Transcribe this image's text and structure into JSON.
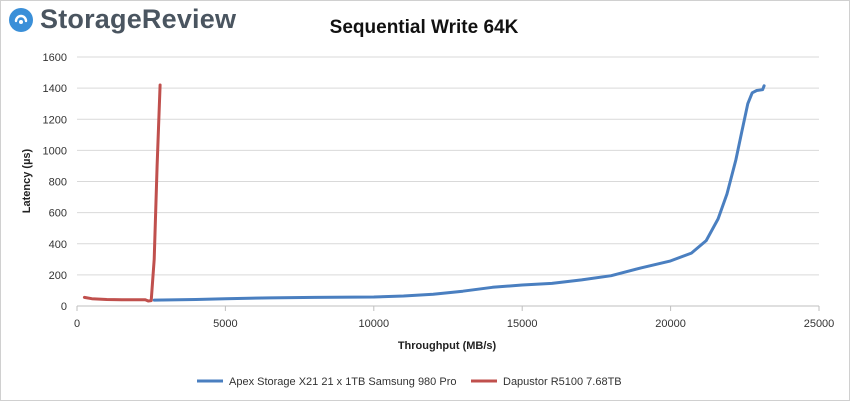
{
  "brand": {
    "name": "StorageReview",
    "accent": "#3a8fd8"
  },
  "chart_data": {
    "type": "line",
    "title": "Sequential Write 64K",
    "xlabel": "Throughput (MB/s)",
    "ylabel": "Latency (µs)",
    "xlim": [
      0,
      25000
    ],
    "ylim": [
      0,
      1600
    ],
    "xticks": [
      0,
      5000,
      10000,
      15000,
      20000,
      25000
    ],
    "yticks": [
      0,
      200,
      400,
      600,
      800,
      1000,
      1200,
      1400,
      1600
    ],
    "grid": {
      "horizontal": true,
      "vertical": false
    },
    "legend": "bottom",
    "series": [
      {
        "name": "Apex Storage X21 21 x 1TB Samsung 980 Pro",
        "color": "#4a7fc0",
        "points": [
          [
            2600,
            38
          ],
          [
            4000,
            42
          ],
          [
            5000,
            47
          ],
          [
            6500,
            52
          ],
          [
            8000,
            55
          ],
          [
            10000,
            58
          ],
          [
            11000,
            64
          ],
          [
            12000,
            75
          ],
          [
            13000,
            95
          ],
          [
            14000,
            120
          ],
          [
            15000,
            135
          ],
          [
            16000,
            145
          ],
          [
            17000,
            168
          ],
          [
            18000,
            195
          ],
          [
            19000,
            245
          ],
          [
            20000,
            290
          ],
          [
            20700,
            340
          ],
          [
            21200,
            420
          ],
          [
            21600,
            560
          ],
          [
            21900,
            720
          ],
          [
            22200,
            940
          ],
          [
            22400,
            1120
          ],
          [
            22600,
            1300
          ],
          [
            22750,
            1370
          ],
          [
            22900,
            1385
          ],
          [
            23100,
            1390
          ],
          [
            23150,
            1415
          ]
        ]
      },
      {
        "name": "Dapustor R5100 7.68TB",
        "color": "#c0504d",
        "points": [
          [
            250,
            55
          ],
          [
            500,
            47
          ],
          [
            1000,
            42
          ],
          [
            1500,
            40
          ],
          [
            2000,
            40
          ],
          [
            2300,
            40
          ],
          [
            2400,
            32
          ],
          [
            2500,
            35
          ],
          [
            2600,
            300
          ],
          [
            2700,
            900
          ],
          [
            2800,
            1420
          ]
        ]
      }
    ]
  }
}
